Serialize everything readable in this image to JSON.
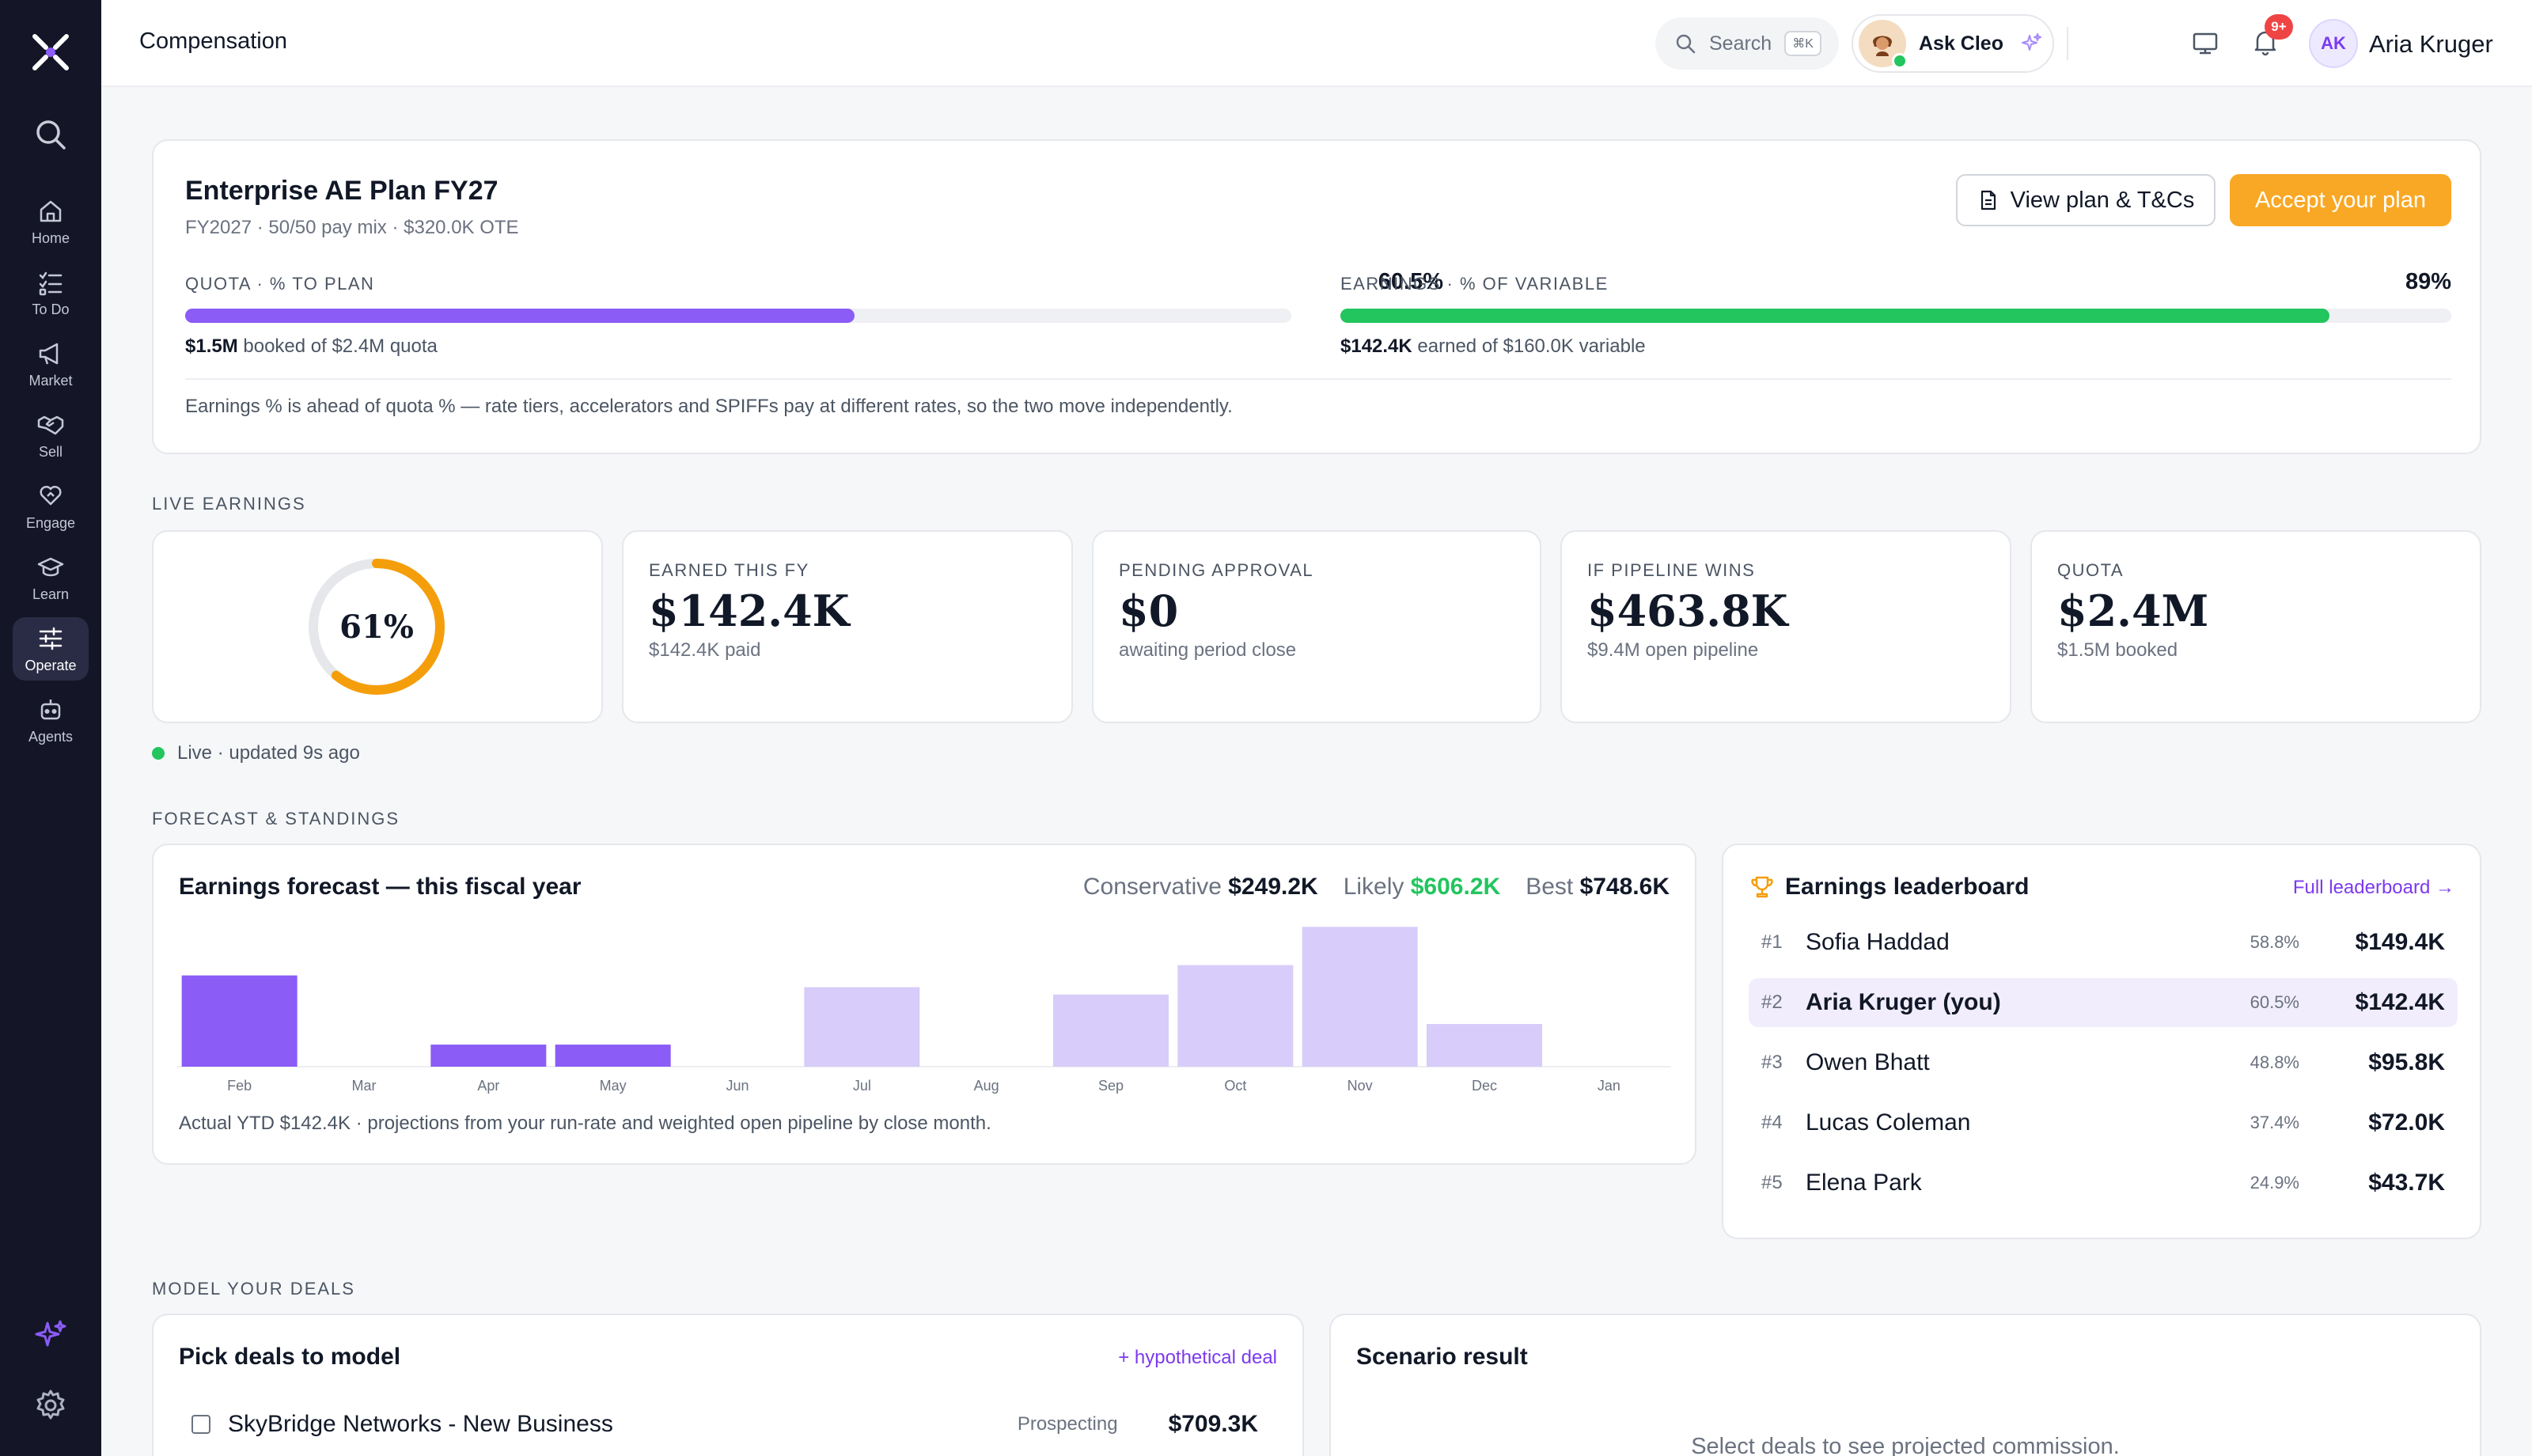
{
  "nav": {
    "items": [
      {
        "label": "Home",
        "icon": "home-icon"
      },
      {
        "label": "To Do",
        "icon": "checklist-icon"
      },
      {
        "label": "Market",
        "icon": "megaphone-icon"
      },
      {
        "label": "Sell",
        "icon": "handshake-icon"
      },
      {
        "label": "Engage",
        "icon": "heart-hands-icon"
      },
      {
        "label": "Learn",
        "icon": "graduation-cap-icon"
      },
      {
        "label": "Operate",
        "icon": "sliders-icon",
        "active": true
      },
      {
        "label": "Agents",
        "icon": "robot-icon"
      }
    ]
  },
  "header": {
    "title": "Compensation",
    "search_label": "Search",
    "search_shortcut": "⌘K",
    "assistant_label": "Ask Cleo",
    "notifications_badge": "9+",
    "user_initials": "AK",
    "user_name": "Aria Kruger"
  },
  "plan": {
    "title": "Enterprise AE Plan FY27",
    "subtitle": "FY2027 · 50/50 pay mix · $320.0K OTE",
    "view_button": "View plan & T&Cs",
    "accept_button": "Accept your plan",
    "quota": {
      "label": "QUOTA · % TO PLAN",
      "pct_text": "60.5%",
      "progress": 0.605,
      "bold": "$1.5M",
      "rest": " booked of $2.4M quota",
      "color": "#8b5cf6"
    },
    "earnings": {
      "label": "EARNINGS · % OF VARIABLE",
      "pct_text": "89%",
      "progress": 0.89,
      "bold": "$142.4K",
      "rest": " earned of $160.0K variable",
      "color": "#22c55e"
    },
    "footnote": "Earnings % is ahead of quota % — rate tiers, accelerators and SPIFFs pay at different rates, so the two move independently."
  },
  "live": {
    "section_label": "LIVE EARNINGS",
    "ring_text": "61%",
    "ring_progress": 0.61,
    "ring_color": "#f59e0b",
    "kpis": [
      {
        "label": "EARNED THIS FY",
        "value": "$142.4K",
        "sub": "$142.4K paid"
      },
      {
        "label": "PENDING APPROVAL",
        "value": "$0",
        "sub": "awaiting period close"
      },
      {
        "label": "IF PIPELINE WINS",
        "value": "$463.8K",
        "sub": "$9.4M open pipeline"
      },
      {
        "label": "QUOTA",
        "value": "$2.4M",
        "sub": "$1.5M booked"
      }
    ],
    "status": "Live · updated 9s ago"
  },
  "forecast": {
    "section_label": "FORECAST & STANDINGS",
    "title": "Earnings forecast — this fiscal year",
    "scenarios": [
      {
        "label": "Conservative",
        "value": "$249.2K"
      },
      {
        "label": "Likely",
        "value": "$606.2K"
      },
      {
        "label": "Best",
        "value": "$748.6K"
      }
    ],
    "footnote": "Actual YTD $142.4K · projections from your run-rate and weighted open pipeline by close month."
  },
  "chart_data": {
    "type": "bar",
    "title": "Earnings forecast — this fiscal year",
    "categories": [
      "Feb",
      "Mar",
      "Apr",
      "May",
      "Jun",
      "Jul",
      "Aug",
      "Sep",
      "Oct",
      "Nov",
      "Dec",
      "Jan"
    ],
    "series": [
      {
        "name": "",
        "values": [
          62,
          0,
          15,
          15,
          0,
          0,
          0,
          0,
          0,
          0,
          0,
          0
        ],
        "color": "#8b5cf6"
      },
      {
        "name": "",
        "values": [
          0,
          0,
          0,
          0,
          0,
          54,
          0,
          49,
          69,
          95,
          29,
          0
        ],
        "color": "#d8ccfa"
      }
    ],
    "ylim": [
      0,
      100
    ],
    "grid": false,
    "legend": "none"
  },
  "leaderboard": {
    "title": "Earnings leaderboard",
    "link": "Full leaderboard →",
    "rows": [
      {
        "rank": "#1",
        "name": "Sofia Haddad",
        "pct": "58.8%",
        "amount": "$149.4K"
      },
      {
        "rank": "#2",
        "name": "Aria Kruger (you)",
        "pct": "60.5%",
        "amount": "$142.4K",
        "me": true
      },
      {
        "rank": "#3",
        "name": "Owen Bhatt",
        "pct": "48.8%",
        "amount": "$95.8K"
      },
      {
        "rank": "#4",
        "name": "Lucas Coleman",
        "pct": "37.4%",
        "amount": "$72.0K"
      },
      {
        "rank": "#5",
        "name": "Elena Park",
        "pct": "24.9%",
        "amount": "$43.7K"
      }
    ]
  },
  "model": {
    "section_label": "MODEL YOUR DEALS",
    "title": "Pick deals to model",
    "add_link": "+ hypothetical deal",
    "deals": [
      {
        "name": "SkyBridge Networks - New Business",
        "stage": "Prospecting",
        "amount": "$709.3K"
      }
    ],
    "scenario_title": "Scenario result",
    "scenario_empty": "Select deals to see projected commission."
  }
}
